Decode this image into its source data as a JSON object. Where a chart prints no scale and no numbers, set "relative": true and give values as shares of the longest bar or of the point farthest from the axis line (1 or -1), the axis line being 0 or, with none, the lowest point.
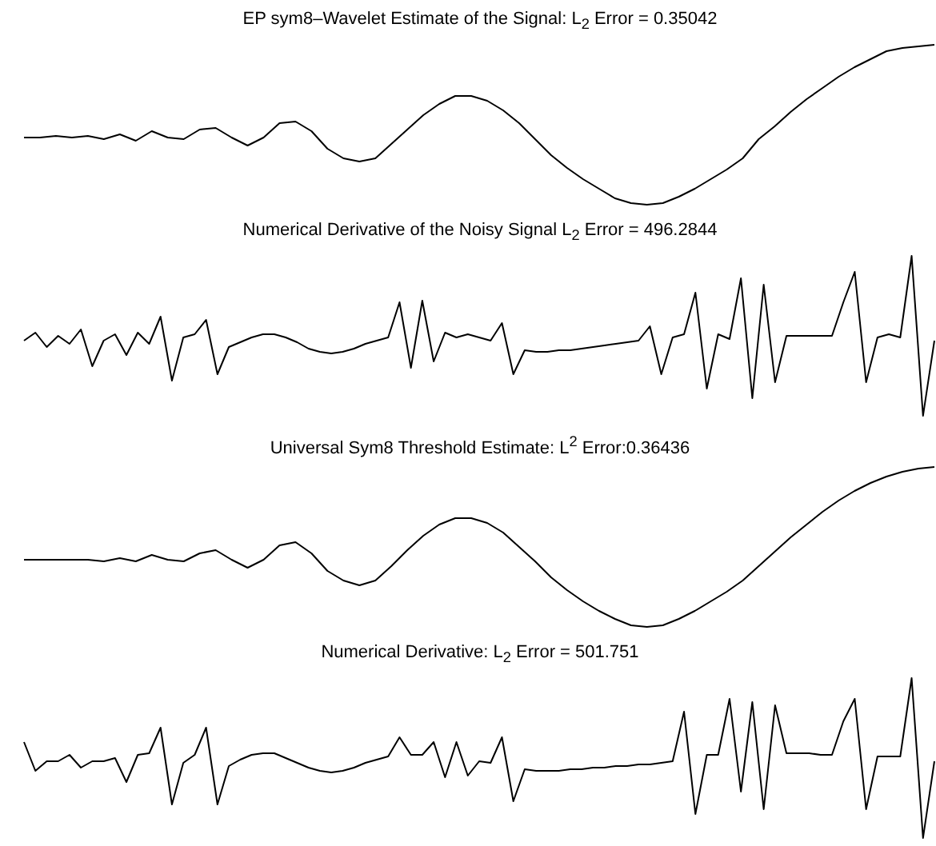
{
  "chart_data": [
    {
      "type": "line",
      "title": "EP sym8–Wavelet Estimate of the Signal: L$_{2}$ Error = 0.35042",
      "relative": true,
      "color": "#000000",
      "categories": [
        null,
        null,
        null,
        null,
        null,
        null,
        null,
        null,
        null,
        null,
        null,
        null,
        null,
        null,
        null,
        null,
        null,
        null,
        null,
        null,
        null,
        null,
        null,
        null,
        null,
        null,
        null,
        null,
        null,
        null,
        null,
        null,
        null,
        null,
        null,
        null,
        null,
        null,
        null,
        null,
        null,
        null,
        null,
        null,
        null,
        null,
        null,
        null,
        null,
        null,
        null,
        null,
        null,
        null,
        null,
        null,
        null,
        null
      ],
      "values": [
        0.42,
        0.42,
        0.43,
        0.42,
        0.43,
        0.41,
        0.44,
        0.4,
        0.46,
        0.42,
        0.41,
        0.47,
        0.48,
        0.42,
        0.37,
        0.42,
        0.51,
        0.52,
        0.46,
        0.35,
        0.29,
        0.27,
        0.29,
        0.38,
        0.47,
        0.56,
        0.63,
        0.68,
        0.68,
        0.65,
        0.59,
        0.51,
        0.41,
        0.31,
        0.23,
        0.16,
        0.1,
        0.04,
        0.01,
        0,
        0.01,
        0.05,
        0.1,
        0.16,
        0.22,
        0.29,
        0.41,
        0.49,
        0.58,
        0.66,
        0.73,
        0.8,
        0.86,
        0.91,
        0.96,
        0.98,
        0.99,
        1
      ]
    },
    {
      "type": "line",
      "title": "Numerical Derivative of the Noisy Signal L$_{2}$ Error = 496.2844",
      "relative": true,
      "color": "#000000",
      "categories": [
        null,
        null,
        null,
        null,
        null,
        null,
        null,
        null,
        null,
        null,
        null,
        null,
        null,
        null,
        null,
        null,
        null,
        null,
        null,
        null,
        null,
        null,
        null,
        null,
        null,
        null,
        null,
        null,
        null,
        null,
        null,
        null,
        null,
        null,
        null,
        null,
        null,
        null,
        null,
        null,
        null,
        null,
        null,
        null,
        null,
        null,
        null,
        null,
        null,
        null,
        null,
        null,
        null,
        null,
        null,
        null,
        null,
        null,
        null,
        null,
        null,
        null,
        null,
        null,
        null,
        null,
        null,
        null,
        null,
        null,
        null,
        null,
        null,
        null,
        null,
        null,
        null,
        null,
        null,
        null,
        null
      ],
      "values": [
        0.47,
        0.52,
        0.43,
        0.5,
        0.45,
        0.54,
        0.31,
        0.47,
        0.51,
        0.38,
        0.52,
        0.45,
        0.62,
        0.22,
        0.49,
        0.51,
        0.6,
        0.26,
        0.43,
        0.46,
        0.49,
        0.51,
        0.51,
        0.49,
        0.46,
        0.42,
        0.4,
        0.39,
        0.4,
        0.42,
        0.45,
        0.47,
        0.49,
        0.71,
        0.3,
        0.72,
        0.34,
        0.52,
        0.49,
        0.51,
        0.49,
        0.47,
        0.58,
        0.26,
        0.41,
        0.4,
        0.4,
        0.41,
        0.41,
        0.42,
        0.43,
        0.44,
        0.45,
        0.46,
        0.47,
        0.56,
        0.26,
        0.49,
        0.51,
        0.77,
        0.17,
        0.51,
        0.48,
        0.86,
        0.11,
        0.82,
        0.21,
        0.5,
        0.5,
        0.5,
        0.5,
        0.5,
        0.71,
        0.9,
        0.21,
        0.49,
        0.51,
        0.49,
        1,
        0,
        0.47
      ]
    },
    {
      "type": "line",
      "title": "Universal Sym8 Threshold Estimate: L$^{2}$ Error:0.36436",
      "relative": true,
      "color": "#000000",
      "categories": [
        null,
        null,
        null,
        null,
        null,
        null,
        null,
        null,
        null,
        null,
        null,
        null,
        null,
        null,
        null,
        null,
        null,
        null,
        null,
        null,
        null,
        null,
        null,
        null,
        null,
        null,
        null,
        null,
        null,
        null,
        null,
        null,
        null,
        null,
        null,
        null,
        null,
        null,
        null,
        null,
        null,
        null,
        null,
        null,
        null,
        null,
        null,
        null,
        null,
        null,
        null,
        null,
        null,
        null,
        null,
        null,
        null,
        null
      ],
      "values": [
        0.42,
        0.42,
        0.42,
        0.42,
        0.42,
        0.41,
        0.43,
        0.41,
        0.45,
        0.42,
        0.41,
        0.46,
        0.48,
        0.42,
        0.37,
        0.42,
        0.51,
        0.53,
        0.46,
        0.35,
        0.29,
        0.26,
        0.29,
        0.38,
        0.48,
        0.57,
        0.64,
        0.68,
        0.68,
        0.65,
        0.59,
        0.5,
        0.41,
        0.31,
        0.23,
        0.16,
        0.1,
        0.05,
        0.01,
        0,
        0.01,
        0.05,
        0.1,
        0.16,
        0.22,
        0.29,
        0.38,
        0.47,
        0.56,
        0.64,
        0.72,
        0.79,
        0.85,
        0.9,
        0.94,
        0.97,
        0.99,
        1
      ]
    },
    {
      "type": "line",
      "title": "Numerical Derivative: L$_{2}$ Error = 501.751",
      "relative": true,
      "color": "#000000",
      "categories": [
        null,
        null,
        null,
        null,
        null,
        null,
        null,
        null,
        null,
        null,
        null,
        null,
        null,
        null,
        null,
        null,
        null,
        null,
        null,
        null,
        null,
        null,
        null,
        null,
        null,
        null,
        null,
        null,
        null,
        null,
        null,
        null,
        null,
        null,
        null,
        null,
        null,
        null,
        null,
        null,
        null,
        null,
        null,
        null,
        null,
        null,
        null,
        null,
        null,
        null,
        null,
        null,
        null,
        null,
        null,
        null,
        null,
        null,
        null,
        null,
        null,
        null,
        null,
        null,
        null,
        null,
        null,
        null,
        null,
        null,
        null,
        null,
        null,
        null,
        null,
        null,
        null,
        null,
        null,
        null,
        null
      ],
      "values": [
        0.6,
        0.42,
        0.48,
        0.48,
        0.52,
        0.44,
        0.48,
        0.48,
        0.5,
        0.35,
        0.52,
        0.53,
        0.69,
        0.21,
        0.47,
        0.52,
        0.69,
        0.21,
        0.45,
        0.49,
        0.52,
        0.53,
        0.53,
        0.5,
        0.47,
        0.44,
        0.42,
        0.41,
        0.42,
        0.44,
        0.47,
        0.49,
        0.51,
        0.63,
        0.52,
        0.52,
        0.6,
        0.38,
        0.6,
        0.39,
        0.48,
        0.47,
        0.63,
        0.23,
        0.43,
        0.42,
        0.42,
        0.42,
        0.43,
        0.43,
        0.44,
        0.44,
        0.45,
        0.45,
        0.46,
        0.46,
        0.47,
        0.48,
        0.79,
        0.15,
        0.52,
        0.52,
        0.87,
        0.29,
        0.85,
        0.18,
        0.83,
        0.53,
        0.53,
        0.53,
        0.52,
        0.52,
        0.73,
        0.87,
        0.18,
        0.51,
        0.51,
        0.51,
        1,
        0,
        0.48
      ]
    }
  ]
}
